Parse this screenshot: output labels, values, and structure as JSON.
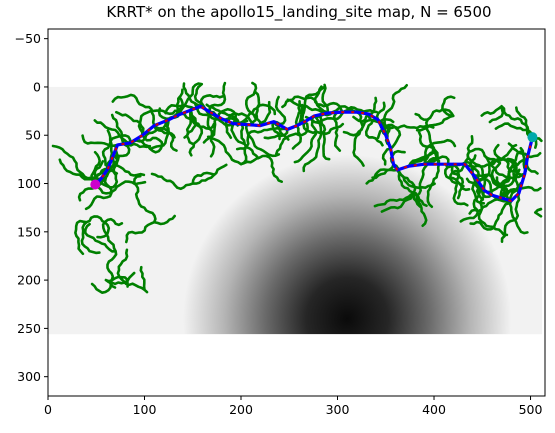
{
  "chart_data": {
    "type": "heatmap",
    "title": "KRRT* on the apollo15_landing_site map, N = 6500",
    "xlabel": "",
    "ylabel": "",
    "xlim": [
      0,
      515
    ],
    "ylim": [
      320,
      -60
    ],
    "y_inverted": true,
    "grid": false,
    "x_ticks": [
      0,
      100,
      200,
      300,
      400,
      500
    ],
    "y_ticks": [
      0,
      50,
      100,
      150,
      200,
      250,
      300
    ],
    "image_extent": {
      "x": [
        0,
        512
      ],
      "y": [
        0,
        256
      ]
    },
    "heightmap": {
      "description_colormap": "gray",
      "dark_center": [
        310,
        240
      ],
      "dark_radius": 170
    },
    "start": {
      "x": 49,
      "y": 101,
      "color": "#cc00cc"
    },
    "goal": {
      "x": 502,
      "y": 52,
      "color": "#00aaaa"
    },
    "path": {
      "color": "#0000ff",
      "dash_color": "#dd0000",
      "points": [
        [
          49,
          101
        ],
        [
          55,
          95
        ],
        [
          62,
          85
        ],
        [
          68,
          70
        ],
        [
          72,
          60
        ],
        [
          85,
          58
        ],
        [
          98,
          50
        ],
        [
          110,
          40
        ],
        [
          125,
          34
        ],
        [
          135,
          29
        ],
        [
          148,
          24
        ],
        [
          158,
          20
        ],
        [
          168,
          26
        ],
        [
          180,
          33
        ],
        [
          192,
          38
        ],
        [
          206,
          39
        ],
        [
          220,
          40
        ],
        [
          234,
          36
        ],
        [
          248,
          44
        ],
        [
          258,
          40
        ],
        [
          266,
          36
        ],
        [
          276,
          30
        ],
        [
          290,
          27
        ],
        [
          305,
          26
        ],
        [
          320,
          26
        ],
        [
          332,
          28
        ],
        [
          342,
          34
        ],
        [
          350,
          50
        ],
        [
          355,
          64
        ],
        [
          358,
          80
        ],
        [
          362,
          86
        ],
        [
          374,
          82
        ],
        [
          390,
          80
        ],
        [
          405,
          80
        ],
        [
          420,
          80
        ],
        [
          432,
          80
        ],
        [
          440,
          90
        ],
        [
          446,
          98
        ],
        [
          452,
          107
        ],
        [
          460,
          112
        ],
        [
          470,
          115
        ],
        [
          480,
          118
        ],
        [
          488,
          110
        ],
        [
          494,
          90
        ],
        [
          497,
          72
        ],
        [
          502,
          52
        ]
      ]
    },
    "tree": {
      "color": "#008000",
      "edge_count_shown": 6500
    }
  }
}
